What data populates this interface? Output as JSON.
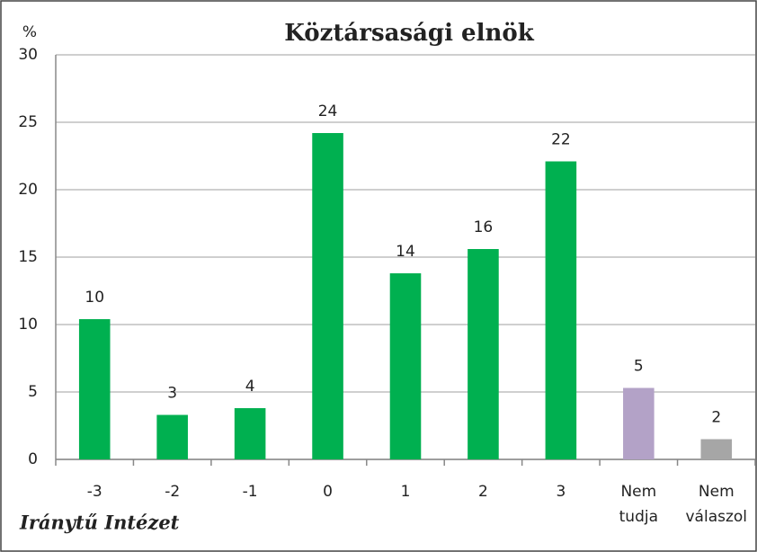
{
  "chart_data": {
    "type": "bar",
    "title": "Köztársasági elnök",
    "y_label": "%",
    "annotation": "Iránytű Intézet",
    "categories": [
      "-3",
      "-2",
      "-1",
      "0",
      "1",
      "2",
      "3",
      "Nem tudja",
      "Nem válaszol"
    ],
    "values": [
      10.4,
      3.3,
      3.8,
      24.2,
      13.8,
      15.6,
      22.1,
      5.3,
      1.5
    ],
    "value_labels": [
      "10",
      "3",
      "4",
      "24",
      "14",
      "16",
      "22",
      "5",
      "2"
    ],
    "colors": [
      "#00b050",
      "#00b050",
      "#00b050",
      "#00b050",
      "#00b050",
      "#00b050",
      "#00b050",
      "#b3a2c7",
      "#a6a6a6"
    ],
    "ylim": [
      0,
      30
    ],
    "yticks": [
      0,
      5,
      10,
      15,
      20,
      25,
      30
    ],
    "grid": true
  }
}
